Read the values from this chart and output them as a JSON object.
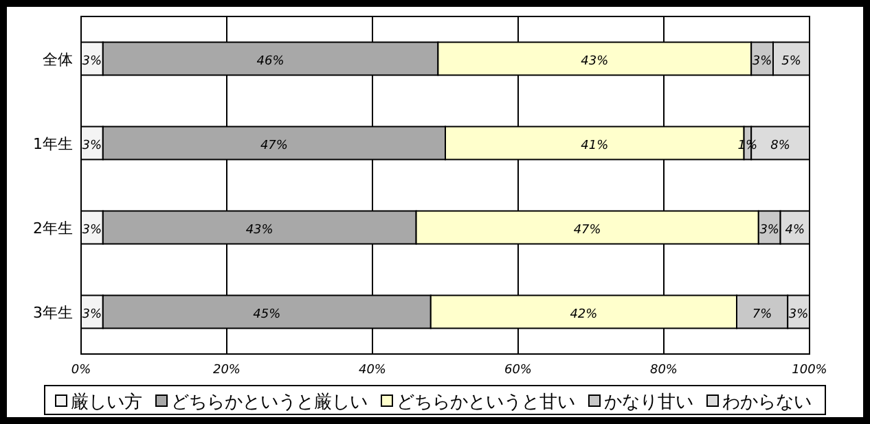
{
  "chart_data": {
    "type": "bar",
    "orientation": "horizontal",
    "stacked": true,
    "categories": [
      "全体",
      "1年生",
      "2年生",
      "3年生"
    ],
    "series": [
      {
        "name": "厳しい方",
        "color": "#f4f4f4",
        "values": [
          3,
          3,
          3,
          3
        ],
        "value_labels": [
          "3%",
          "3%",
          "3%",
          "3%"
        ]
      },
      {
        "name": "どちらかというと厳しい",
        "color": "#a8a8a8",
        "values": [
          46,
          47,
          43,
          45
        ],
        "value_labels": [
          "46%",
          "47%",
          "43%",
          "45%"
        ]
      },
      {
        "name": "どちらかというと甘い",
        "color": "#ffffcc",
        "values": [
          43,
          41,
          47,
          42
        ],
        "value_labels": [
          "43%",
          "41%",
          "47%",
          "42%"
        ]
      },
      {
        "name": "かなり甘い",
        "color": "#c8c8c8",
        "values": [
          3,
          1,
          3,
          7
        ],
        "value_labels": [
          "3%",
          "1%",
          "3%",
          "7%"
        ]
      },
      {
        "name": "わからない",
        "color": "#dcdcdc",
        "values": [
          5,
          8,
          4,
          3
        ],
        "value_labels": [
          "5%",
          "8%",
          "4%",
          "3%"
        ]
      }
    ],
    "xlim": [
      0,
      100
    ],
    "xticks": [
      {
        "value": 0,
        "label": "0%"
      },
      {
        "value": 20,
        "label": "20%"
      },
      {
        "value": 40,
        "label": "40%"
      },
      {
        "value": 60,
        "label": "60%"
      },
      {
        "value": 80,
        "label": "80%"
      },
      {
        "value": 100,
        "label": "100%"
      }
    ],
    "grid": "x",
    "legend": "bottom"
  }
}
